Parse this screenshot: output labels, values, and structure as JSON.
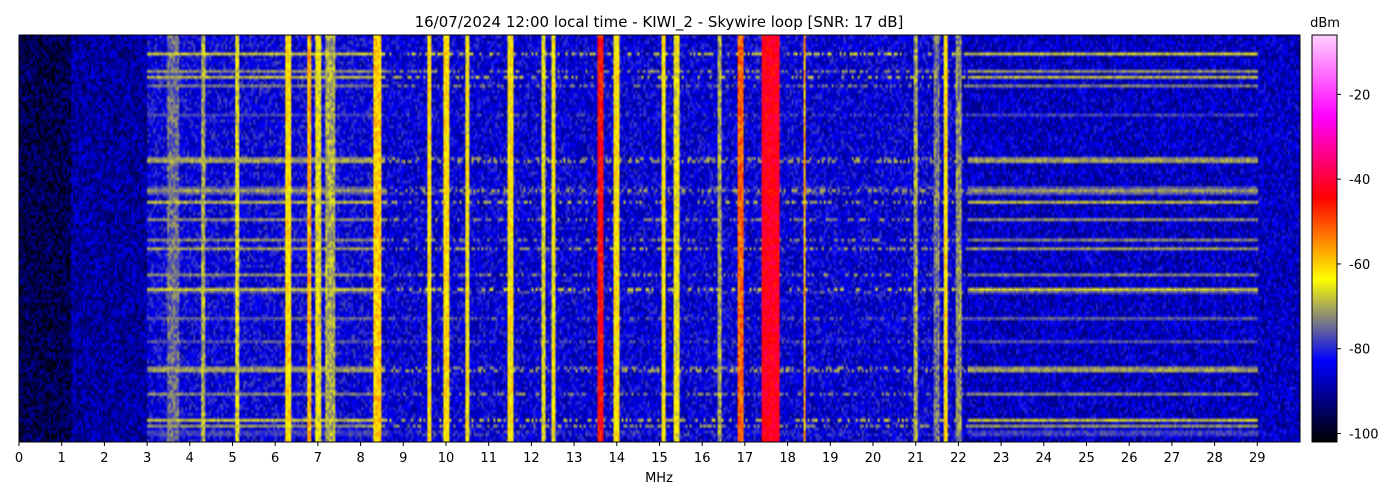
{
  "chart_data": {
    "type": "heatmap",
    "title": "16/07/2024 12:00 local time - KIWI_2 - Skywire loop [SNR: 17 dB]",
    "xlabel": "MHz",
    "ylabel": "",
    "xlim": [
      0,
      30
    ],
    "x_ticks": [
      "0",
      "1",
      "2",
      "3",
      "4",
      "5",
      "6",
      "7",
      "8",
      "9",
      "10",
      "11",
      "12",
      "13",
      "14",
      "15",
      "16",
      "17",
      "18",
      "19",
      "20",
      "21",
      "22",
      "23",
      "24",
      "25",
      "26",
      "27",
      "28",
      "29"
    ],
    "colorbar": {
      "label": "dBm",
      "range": [
        -102,
        -6
      ],
      "ticks": [
        "-20",
        "-40",
        "-60",
        "-80",
        "-100"
      ],
      "tick_values": [
        -20,
        -40,
        -60,
        -80,
        -100
      ],
      "colors": [
        "#000000",
        "#0000ff",
        "#ffff00",
        "#ff0000",
        "#ff00ff",
        "#ffd0ff"
      ]
    },
    "time_rows": 140,
    "background_levels": [
      {
        "x_from": 0,
        "x_to": 1.2,
        "dbm": -96
      },
      {
        "x_from": 1.2,
        "x_to": 3,
        "dbm": -90
      },
      {
        "x_from": 3,
        "x_to": 8.5,
        "dbm": -84
      },
      {
        "x_from": 8.5,
        "x_to": 22,
        "dbm": -85
      },
      {
        "x_from": 22,
        "x_to": 30,
        "dbm": -87
      }
    ],
    "signal_lines": [
      {
        "mhz": 3.6,
        "dbm": -75,
        "width": 0.25
      },
      {
        "mhz": 4.3,
        "dbm": -70,
        "width": 0.05
      },
      {
        "mhz": 5.1,
        "dbm": -66,
        "width": 0.05
      },
      {
        "mhz": 6.3,
        "dbm": -62,
        "width": 0.1
      },
      {
        "mhz": 6.8,
        "dbm": -58,
        "width": 0.08
      },
      {
        "mhz": 7.0,
        "dbm": -65,
        "width": 0.1
      },
      {
        "mhz": 7.3,
        "dbm": -70,
        "width": 0.2
      },
      {
        "mhz": 8.4,
        "dbm": -60,
        "width": 0.15
      },
      {
        "mhz": 9.6,
        "dbm": -62,
        "width": 0.06
      },
      {
        "mhz": 10.0,
        "dbm": -62,
        "width": 0.08
      },
      {
        "mhz": 10.5,
        "dbm": -64,
        "width": 0.05
      },
      {
        "mhz": 11.5,
        "dbm": -63,
        "width": 0.1
      },
      {
        "mhz": 12.3,
        "dbm": -66,
        "width": 0.05
      },
      {
        "mhz": 12.5,
        "dbm": -64,
        "width": 0.05
      },
      {
        "mhz": 13.6,
        "dbm": -45,
        "width": 0.1
      },
      {
        "mhz": 14.0,
        "dbm": -62,
        "width": 0.1
      },
      {
        "mhz": 15.1,
        "dbm": -63,
        "width": 0.08
      },
      {
        "mhz": 15.4,
        "dbm": -65,
        "width": 0.1
      },
      {
        "mhz": 16.4,
        "dbm": -70,
        "width": 0.05
      },
      {
        "mhz": 16.9,
        "dbm": -52,
        "width": 0.06
      },
      {
        "mhz": 17.6,
        "dbm": -42,
        "width": 0.4
      },
      {
        "mhz": 18.4,
        "dbm": -58,
        "width": 0.05
      },
      {
        "mhz": 21.0,
        "dbm": -70,
        "width": 0.05
      },
      {
        "mhz": 21.5,
        "dbm": -74,
        "width": 0.1
      },
      {
        "mhz": 21.7,
        "dbm": -62,
        "width": 0.06
      },
      {
        "mhz": 22.0,
        "dbm": -72,
        "width": 0.1
      }
    ],
    "band_rows_dbm": -70
  }
}
